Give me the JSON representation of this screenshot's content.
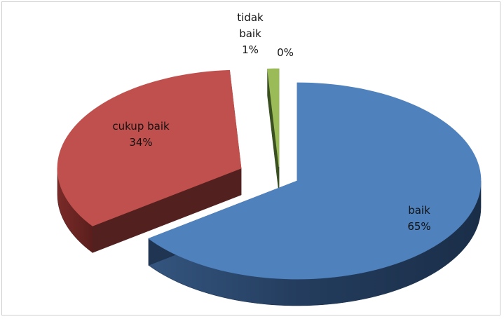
{
  "chart_data": {
    "type": "pie",
    "style": "3d-exploded",
    "title": "",
    "legend": "none",
    "slices": [
      {
        "label": "baik",
        "label_lines": [
          "baik"
        ],
        "value": 65,
        "value_label": "65%",
        "color": "#4f81bd"
      },
      {
        "label": "cukup baik",
        "label_lines": [
          "cukup baik"
        ],
        "value": 34,
        "value_label": "34%",
        "color": "#c0504d"
      },
      {
        "label": "tidak baik",
        "label_lines": [
          "tidak",
          "baik"
        ],
        "value": 1,
        "value_label": "1%",
        "color": "#9bbb59"
      },
      {
        "label": "",
        "label_lines": [],
        "value": 0,
        "value_label": "0%",
        "color": "#8064a2"
      }
    ]
  }
}
